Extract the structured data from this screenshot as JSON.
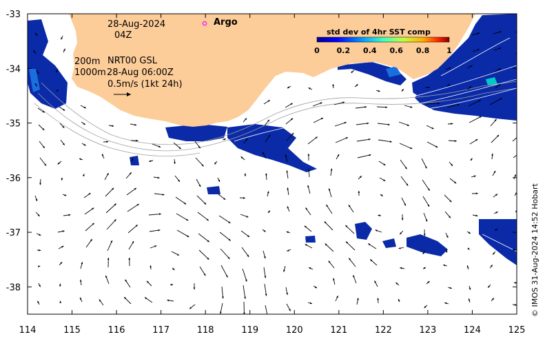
{
  "chart_data": {
    "type": "ocean-current-map",
    "x_ticks": [
      "114",
      "115",
      "116",
      "117",
      "118",
      "119",
      "120",
      "121",
      "122",
      "123",
      "124",
      "125"
    ],
    "y_ticks": [
      "-33",
      "-34",
      "-35",
      "-36",
      "-37",
      "-38"
    ],
    "xlim": [
      114,
      125
    ],
    "ylim": [
      -38.5,
      -33
    ],
    "colorbar": {
      "title": "std dev of 4hr SST comp",
      "ticks": [
        "0",
        "0.2",
        "0.4",
        "0.6",
        "0.8",
        "1"
      ],
      "range": [
        0,
        1
      ]
    },
    "legend": {
      "argo_label": "Argo",
      "argo_color": "#ff00ff"
    },
    "colors": {
      "land": "#fccc99",
      "ocean": "#ffffff",
      "sst_low": "#0a2aa8",
      "sst_mid": "#1a6fe0",
      "sst_high": "#00c8c8"
    }
  },
  "annotations": {
    "date": "28-Aug-2024",
    "time": "04Z",
    "depth_200": "200m",
    "source": "NRT00 GSL",
    "depth_1000": "1000m",
    "valid_time": "28-Aug 06:00Z",
    "scale_label": "0.5m/s (1kt 24h)"
  },
  "credit": "© IMOS 31-Aug-2024 14:52 Hobart"
}
